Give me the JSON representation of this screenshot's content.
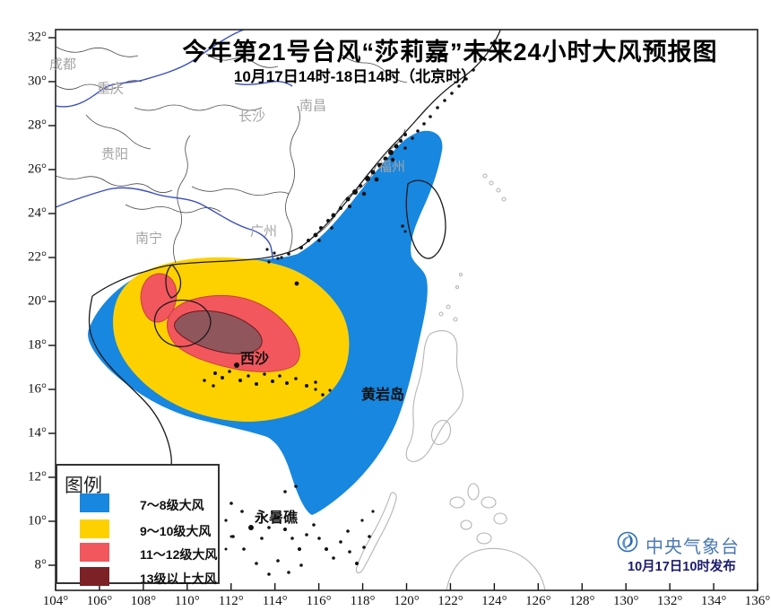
{
  "title": "今年第21号台风“莎莉嘉”未来24小时大风预报图",
  "subtitle": "10月17日14时-18日14时（北京时）",
  "legend": {
    "title": "图例",
    "items": [
      {
        "label": "7～8级大风",
        "color": "#1787e0"
      },
      {
        "label": "9～10级大风",
        "color": "#fdd100"
      },
      {
        "label": "11～12级大风",
        "color": "#f2575d"
      },
      {
        "label": "13级以上大风",
        "color": "#7c2125"
      }
    ]
  },
  "axes": {
    "x_ticks": [
      "104°",
      "106°",
      "108°",
      "110°",
      "112°",
      "114°",
      "116°",
      "118°",
      "120°",
      "122°",
      "124°",
      "126°",
      "128°",
      "130°",
      "132°",
      "134°",
      "136°"
    ],
    "y_ticks": [
      "32°",
      "30°",
      "28°",
      "26°",
      "24°",
      "22°",
      "20°",
      "18°",
      "16°",
      "14°",
      "12°",
      "10°",
      "8°"
    ]
  },
  "map_labels": {
    "cities": {
      "chengdu": "成都",
      "chongqing": "重庆",
      "guiyang": "贵阳",
      "changsha": "长沙",
      "nanchang": "南昌",
      "nanning": "南宁",
      "guangzhou": "广州",
      "fuzhou": "福州"
    },
    "sea": {
      "xisha": "西沙",
      "huangyandao": "黄岩岛",
      "yongshujiao": "永暑礁"
    }
  },
  "attribution": {
    "agency": "中央气象台",
    "issued": "10月17日10时发布"
  },
  "colors": {
    "zone_13_map_fill": "#8f565c",
    "pink_outline": "#c9403f",
    "dark_outline": "#6b1a1e",
    "river": "#3a4ec0",
    "coast": "#1a1a1a",
    "province": "#4a4a4a",
    "foreign": "#b5b5b5",
    "city_label": "#a5a5a5",
    "agency_text": "#4b79b3",
    "issued_text": "#1b1b70"
  }
}
